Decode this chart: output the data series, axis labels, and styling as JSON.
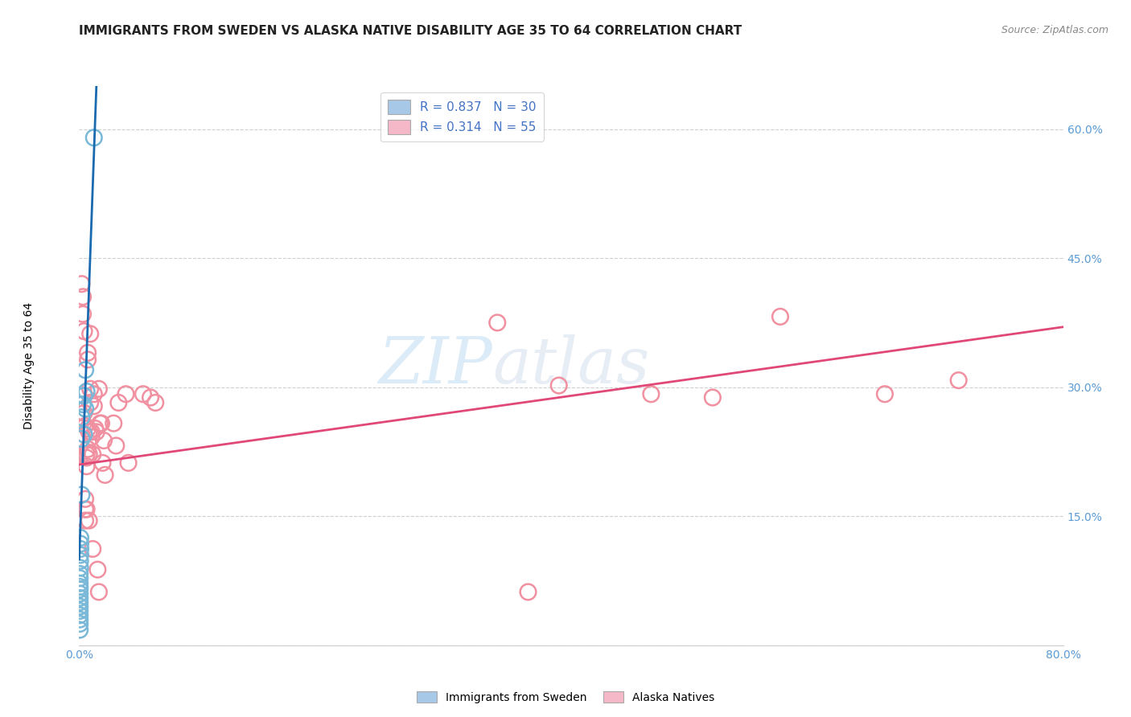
{
  "title": "IMMIGRANTS FROM SWEDEN VS ALASKA NATIVE DISABILITY AGE 35 TO 64 CORRELATION CHART",
  "source": "Source: ZipAtlas.com",
  "ylabel": "Disability Age 35 to 64",
  "xlim": [
    0.0,
    0.8
  ],
  "ylim": [
    0.0,
    0.65
  ],
  "background_color": "#ffffff",
  "watermark_text": "ZIP",
  "watermark_text2": "atlas",
  "legend_entries": [
    {
      "label": "R = 0.837   N = 30",
      "color": "#a8c8e8"
    },
    {
      "label": "R = 0.314   N = 55",
      "color": "#f4b8c8"
    }
  ],
  "sweden_color": "#7ab8d8",
  "alaska_color": "#f090a0",
  "sweden_line_color": "#1a6ab0",
  "alaska_line_color": "#e04878",
  "sweden_points": [
    [
      0.0005,
      0.018
    ],
    [
      0.0005,
      0.025
    ],
    [
      0.0005,
      0.03
    ],
    [
      0.0005,
      0.035
    ],
    [
      0.0005,
      0.04
    ],
    [
      0.0005,
      0.045
    ],
    [
      0.0005,
      0.05
    ],
    [
      0.0005,
      0.055
    ],
    [
      0.0005,
      0.06
    ],
    [
      0.0005,
      0.065
    ],
    [
      0.0005,
      0.068
    ],
    [
      0.0005,
      0.072
    ],
    [
      0.0005,
      0.078
    ],
    [
      0.0005,
      0.083
    ],
    [
      0.0008,
      0.09
    ],
    [
      0.0008,
      0.098
    ],
    [
      0.001,
      0.105
    ],
    [
      0.001,
      0.112
    ],
    [
      0.001,
      0.118
    ],
    [
      0.001,
      0.125
    ],
    [
      0.002,
      0.175
    ],
    [
      0.002,
      0.24
    ],
    [
      0.002,
      0.265
    ],
    [
      0.003,
      0.28
    ],
    [
      0.004,
      0.245
    ],
    [
      0.004,
      0.29
    ],
    [
      0.005,
      0.32
    ],
    [
      0.005,
      0.275
    ],
    [
      0.006,
      0.295
    ],
    [
      0.012,
      0.59
    ]
  ],
  "alaska_points": [
    [
      0.002,
      0.42
    ],
    [
      0.003,
      0.405
    ],
    [
      0.003,
      0.385
    ],
    [
      0.004,
      0.365
    ],
    [
      0.004,
      0.27
    ],
    [
      0.005,
      0.145
    ],
    [
      0.005,
      0.158
    ],
    [
      0.005,
      0.17
    ],
    [
      0.005,
      0.255
    ],
    [
      0.006,
      0.222
    ],
    [
      0.006,
      0.208
    ],
    [
      0.006,
      0.158
    ],
    [
      0.006,
      0.218
    ],
    [
      0.007,
      0.34
    ],
    [
      0.007,
      0.332
    ],
    [
      0.007,
      0.252
    ],
    [
      0.007,
      0.228
    ],
    [
      0.008,
      0.248
    ],
    [
      0.008,
      0.222
    ],
    [
      0.008,
      0.145
    ],
    [
      0.009,
      0.362
    ],
    [
      0.009,
      0.282
    ],
    [
      0.009,
      0.298
    ],
    [
      0.01,
      0.248
    ],
    [
      0.01,
      0.242
    ],
    [
      0.011,
      0.112
    ],
    [
      0.011,
      0.222
    ],
    [
      0.012,
      0.278
    ],
    [
      0.012,
      0.292
    ],
    [
      0.013,
      0.252
    ],
    [
      0.014,
      0.248
    ],
    [
      0.015,
      0.088
    ],
    [
      0.016,
      0.062
    ],
    [
      0.016,
      0.298
    ],
    [
      0.017,
      0.258
    ],
    [
      0.018,
      0.258
    ],
    [
      0.019,
      0.212
    ],
    [
      0.02,
      0.238
    ],
    [
      0.021,
      0.198
    ],
    [
      0.028,
      0.258
    ],
    [
      0.03,
      0.232
    ],
    [
      0.032,
      0.282
    ],
    [
      0.038,
      0.292
    ],
    [
      0.04,
      0.212
    ],
    [
      0.052,
      0.292
    ],
    [
      0.058,
      0.288
    ],
    [
      0.062,
      0.282
    ],
    [
      0.34,
      0.375
    ],
    [
      0.365,
      0.062
    ],
    [
      0.39,
      0.302
    ],
    [
      0.465,
      0.292
    ],
    [
      0.515,
      0.288
    ],
    [
      0.57,
      0.382
    ],
    [
      0.655,
      0.292
    ],
    [
      0.715,
      0.308
    ]
  ],
  "sweden_line_x": [
    0.0,
    0.014
  ],
  "sweden_line_y": [
    0.1,
    0.65
  ],
  "alaska_line_x": [
    0.0,
    0.8
  ],
  "alaska_line_y": [
    0.21,
    0.37
  ],
  "grid_color": "#d0d0d0",
  "title_fontsize": 11,
  "axis_label_fontsize": 10,
  "tick_fontsize": 10,
  "legend_fontsize": 11,
  "tick_color": "#5b9bd5"
}
